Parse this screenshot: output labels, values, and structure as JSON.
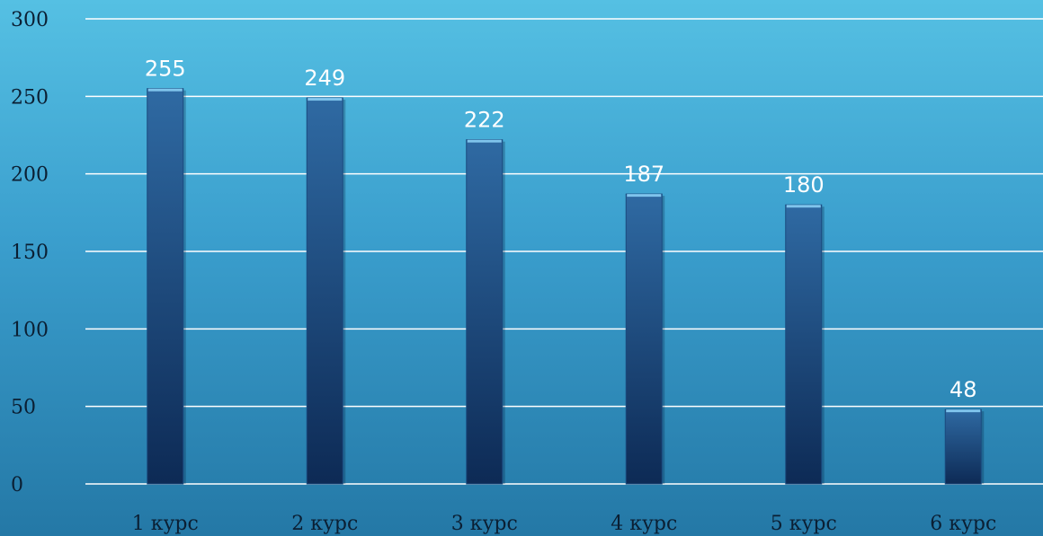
{
  "chart_data": {
    "type": "bar",
    "title": "",
    "xlabel": "",
    "ylabel": "",
    "categories": [
      "1 курс",
      "2 курс",
      "3 курс",
      "4 курс",
      "5 курс",
      "6 курс"
    ],
    "series": [
      {
        "values": [
          255,
          249,
          222,
          187,
          180,
          48
        ]
      }
    ],
    "data_labels": [
      "255",
      "249",
      "222",
      "187",
      "180",
      "48"
    ],
    "y_ticks": [
      "0",
      "50",
      "100",
      "150",
      "200",
      "250",
      "300"
    ],
    "ylim": [
      0,
      300
    ],
    "grid": true,
    "legend": "none"
  },
  "colors": {
    "bar_top": "#2f6aa3",
    "bar_bottom": "#0d2a55",
    "bar_cap": "#7fc4ec",
    "grid": "#ffffff",
    "value_label": "#ffffff",
    "axis_text": "#0b1f33"
  }
}
